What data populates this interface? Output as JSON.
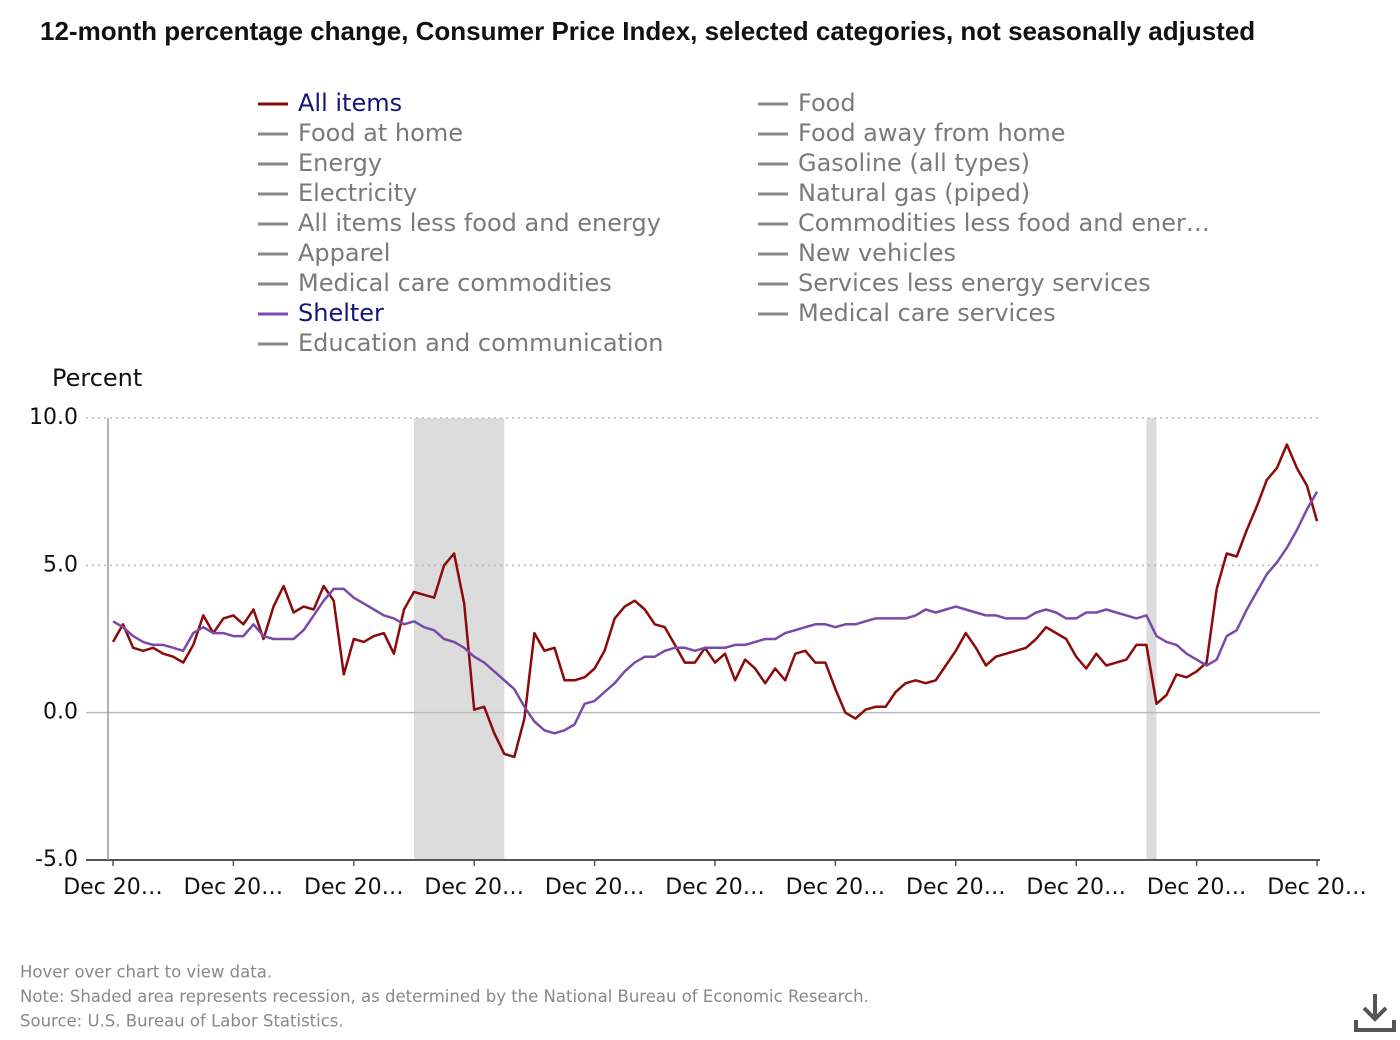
{
  "chart_data": {
    "type": "line",
    "title": "12-month percentage change, Consumer Price Index, selected categories, not seasonally adjusted",
    "ylabel": "Percent",
    "categories": [
      "Dec 20…",
      null,
      null,
      null,
      null,
      null,
      null,
      null,
      null,
      null,
      null,
      null,
      "Dec 20…",
      null,
      null,
      null,
      null,
      null,
      null,
      null,
      null,
      null,
      null,
      null,
      "Dec 20…",
      null,
      null,
      null,
      null,
      null,
      null,
      null,
      null,
      null,
      null,
      null,
      "Dec 20…",
      null,
      null,
      null,
      null,
      null,
      null,
      null,
      null,
      null,
      null,
      null,
      "Dec 20…",
      null,
      null,
      null,
      null,
      null,
      null,
      null,
      null,
      null,
      null,
      null,
      "Dec 20…",
      null,
      null,
      null,
      null,
      null,
      null,
      null,
      null,
      null,
      null,
      null,
      "Dec 20…",
      null,
      null,
      null,
      null,
      null,
      null,
      null,
      null,
      null,
      null,
      null,
      "Dec 20…",
      null,
      null,
      null,
      null,
      null,
      null,
      null,
      null,
      null,
      null,
      null,
      "Dec 20…",
      null,
      null,
      null,
      null,
      null,
      null,
      null,
      null,
      null,
      null,
      null,
      "Dec 20…",
      null,
      null,
      null,
      null,
      null,
      null,
      null,
      null,
      null,
      null,
      null,
      "Dec 20…"
    ],
    "series": [
      {
        "name": "All items",
        "color": "#8b0a0a",
        "visible": true,
        "values": [
          2.4,
          3.0,
          2.2,
          2.1,
          2.2,
          2.0,
          1.9,
          1.7,
          2.3,
          3.3,
          2.7,
          3.2,
          3.3,
          3.0,
          3.5,
          2.5,
          3.6,
          4.3,
          3.4,
          3.6,
          3.5,
          4.3,
          3.8,
          1.3,
          2.5,
          2.4,
          2.6,
          2.7,
          2.0,
          3.5,
          4.1,
          4.0,
          3.9,
          5.0,
          5.4,
          3.7,
          0.1,
          0.2,
          -0.7,
          -1.4,
          -1.5,
          -0.2,
          2.7,
          2.1,
          2.2,
          1.1,
          1.1,
          1.2,
          1.5,
          2.1,
          3.2,
          3.6,
          3.8,
          3.5,
          3.0,
          2.9,
          2.3,
          1.7,
          1.7,
          2.2,
          1.7,
          2.0,
          1.1,
          1.8,
          1.5,
          1.0,
          1.5,
          1.1,
          2.0,
          2.1,
          1.7,
          1.7,
          0.8,
          0.0,
          -0.2,
          0.1,
          0.2,
          0.2,
          0.7,
          1.0,
          1.1,
          1.0,
          1.1,
          1.6,
          2.1,
          2.7,
          2.2,
          1.6,
          1.9,
          2.0,
          2.1,
          2.2,
          2.5,
          2.9,
          2.7,
          2.5,
          1.9,
          1.5,
          2.0,
          1.6,
          1.7,
          1.8,
          2.3,
          2.3,
          0.3,
          0.6,
          1.3,
          1.2,
          1.4,
          1.7,
          4.2,
          5.4,
          5.3,
          6.2,
          7.0,
          7.9,
          8.3,
          9.1,
          8.3,
          7.7,
          6.5
        ]
      },
      {
        "name": "Food",
        "color": "#888888",
        "visible": false
      },
      {
        "name": "Food at home",
        "color": "#888888",
        "visible": false
      },
      {
        "name": "Food away from home",
        "color": "#888888",
        "visible": false
      },
      {
        "name": "Energy",
        "color": "#888888",
        "visible": false
      },
      {
        "name": "Gasoline (all types)",
        "color": "#888888",
        "visible": false
      },
      {
        "name": "Electricity",
        "color": "#888888",
        "visible": false
      },
      {
        "name": "Natural gas (piped)",
        "color": "#888888",
        "visible": false
      },
      {
        "name": "All items less food and energy",
        "color": "#888888",
        "visible": false
      },
      {
        "name": "Commodities less food and ener…",
        "color": "#888888",
        "visible": false
      },
      {
        "name": "Apparel",
        "color": "#888888",
        "visible": false
      },
      {
        "name": "New vehicles",
        "color": "#888888",
        "visible": false
      },
      {
        "name": "Medical care commodities",
        "color": "#888888",
        "visible": false
      },
      {
        "name": "Services less energy services",
        "color": "#888888",
        "visible": false
      },
      {
        "name": "Shelter",
        "color": "#7a4aa8",
        "visible": true,
        "values": [
          3.1,
          2.9,
          2.6,
          2.4,
          2.3,
          2.3,
          2.2,
          2.1,
          2.7,
          2.9,
          2.7,
          2.7,
          2.6,
          2.6,
          3.0,
          2.6,
          2.5,
          2.5,
          2.5,
          2.8,
          3.3,
          3.8,
          4.2,
          4.2,
          3.9,
          3.7,
          3.5,
          3.3,
          3.2,
          3.0,
          3.1,
          2.9,
          2.8,
          2.5,
          2.4,
          2.2,
          1.9,
          1.7,
          1.4,
          1.1,
          0.8,
          0.2,
          -0.3,
          -0.6,
          -0.7,
          -0.6,
          -0.4,
          0.3,
          0.4,
          0.7,
          1.0,
          1.4,
          1.7,
          1.9,
          1.9,
          2.1,
          2.2,
          2.2,
          2.1,
          2.2,
          2.2,
          2.2,
          2.3,
          2.3,
          2.4,
          2.5,
          2.5,
          2.7,
          2.8,
          2.9,
          3.0,
          3.0,
          2.9,
          3.0,
          3.0,
          3.1,
          3.2,
          3.2,
          3.2,
          3.2,
          3.3,
          3.5,
          3.4,
          3.5,
          3.6,
          3.5,
          3.4,
          3.3,
          3.3,
          3.2,
          3.2,
          3.2,
          3.4,
          3.5,
          3.4,
          3.2,
          3.2,
          3.4,
          3.4,
          3.5,
          3.4,
          3.3,
          3.2,
          3.3,
          2.6,
          2.4,
          2.3,
          2.0,
          1.8,
          1.6,
          1.8,
          2.6,
          2.8,
          3.5,
          4.1,
          4.7,
          5.1,
          5.6,
          6.2,
          6.9,
          7.5
        ]
      },
      {
        "name": "Medical care services",
        "color": "#888888",
        "visible": false
      },
      {
        "name": "Education and communication",
        "color": "#888888",
        "visible": false
      }
    ],
    "recessions": [
      [
        30,
        39
      ],
      [
        103,
        104
      ]
    ],
    "ylim": [
      -5,
      10
    ],
    "yticks": [
      {
        "value": -5,
        "label": "-5.0"
      },
      {
        "value": 0,
        "label": "0.0"
      },
      {
        "value": 5,
        "label": "5.0"
      },
      {
        "value": 10,
        "label": "10.0"
      }
    ],
    "grid": true,
    "notes": [
      "Hover over chart to view data.",
      "Note: Shaded area represents recession, as determined by the National Bureau of Economic Research.",
      "Source: U.S. Bureau of Labor Statistics."
    ]
  }
}
